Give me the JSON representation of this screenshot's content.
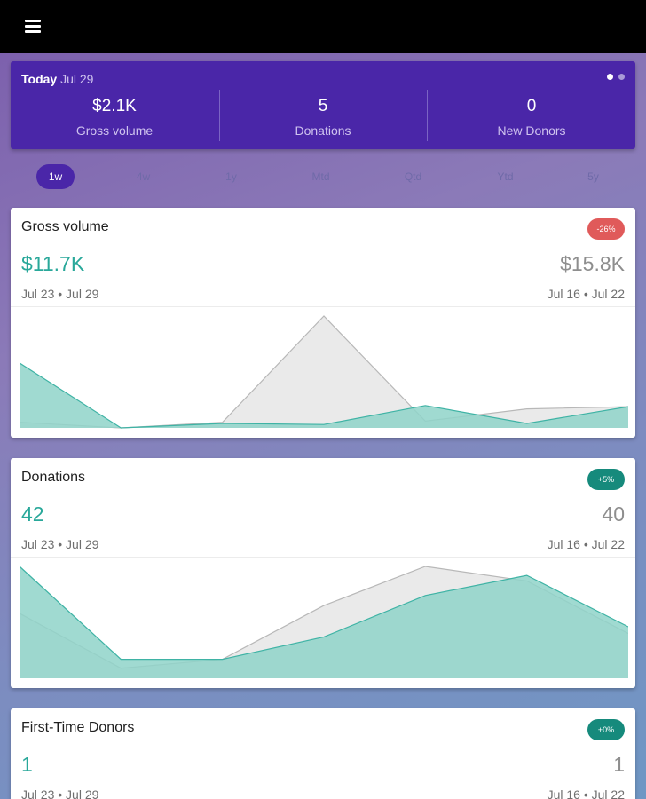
{
  "header": {
    "menu_icon": "hamburger-menu-icon"
  },
  "summary": {
    "today_label": "Today",
    "date": "Jul 29",
    "stats": [
      {
        "value": "$2.1K",
        "label": "Gross volume"
      },
      {
        "value": "5",
        "label": "Donations"
      },
      {
        "value": "0",
        "label": "New Donors"
      }
    ],
    "pages": 2,
    "current_page": 1
  },
  "ranges": {
    "options": [
      "1w",
      "4w",
      "1y",
      "Mtd",
      "Qtd",
      "Ytd",
      "5y"
    ],
    "selected": "1w"
  },
  "colors": {
    "accent": "#4a26a8",
    "current_series": "#29a89a",
    "previous_series": "#9a9a9a",
    "negative": "#e05a5a",
    "positive": "#168a7c"
  },
  "cards": [
    {
      "title": "Gross volume",
      "change": "-26%",
      "change_sign": "neg",
      "current_value": "$11.7K",
      "previous_value": "$15.8K",
      "current_range": "Jul 23 • Jul 29",
      "previous_range": "Jul 16 • Jul 22"
    },
    {
      "title": "Donations",
      "change": "+5%",
      "change_sign": "pos",
      "current_value": "42",
      "previous_value": "40",
      "current_range": "Jul 23 • Jul 29",
      "previous_range": "Jul 16 • Jul 22"
    },
    {
      "title": "First-Time Donors",
      "change": "+0%",
      "change_sign": "pos",
      "current_value": "1",
      "previous_value": "1",
      "current_range": "Jul 23 • Jul 29",
      "previous_range": "Jul 16 • Jul 22"
    }
  ],
  "chart_data": [
    {
      "type": "area",
      "series": [
        {
          "name": "",
          "role": "current",
          "values": [
            0.58,
            0.0,
            0.04,
            0.03,
            0.2,
            0.04,
            0.19
          ]
        },
        {
          "name": "",
          "role": "previous",
          "values": [
            0.05,
            0.0,
            0.05,
            1.0,
            0.06,
            0.17,
            0.19
          ]
        }
      ]
    },
    {
      "type": "area",
      "series": [
        {
          "name": "",
          "role": "current",
          "values": [
            1.0,
            0.17,
            0.17,
            0.37,
            0.74,
            0.92,
            0.46
          ]
        },
        {
          "name": "",
          "role": "previous",
          "values": [
            0.58,
            0.09,
            0.17,
            0.65,
            1.0,
            0.87,
            0.4
          ]
        }
      ]
    }
  ]
}
